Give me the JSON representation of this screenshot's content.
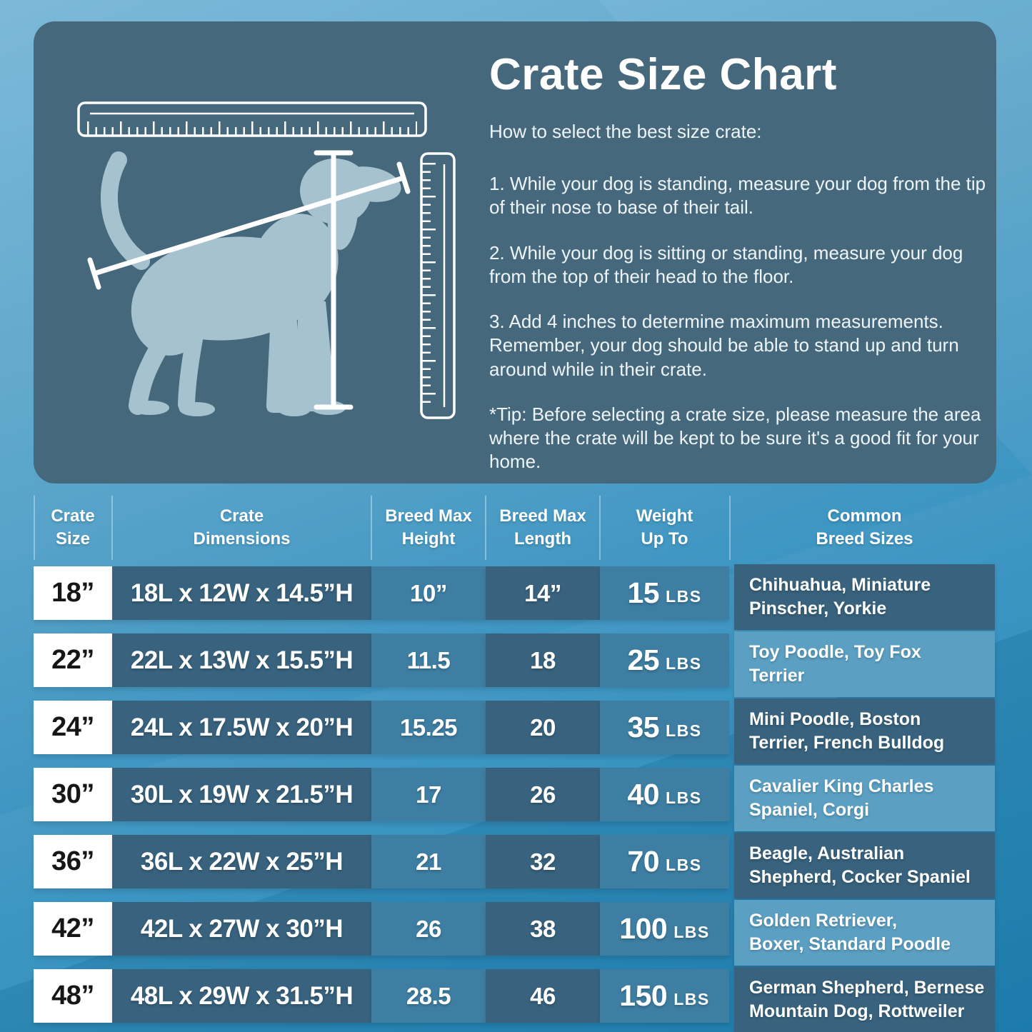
{
  "colors": {
    "bg_top": "#7db9d8",
    "bg_bottom": "#1e82b5",
    "panel": "#45687c",
    "dog": "#a7c2cf",
    "cell_dark": "#38627d",
    "cell_medium": "#3d7ea2",
    "cell_light": "#5b9fc2",
    "size_cell_bg": "#ffffff",
    "size_cell_text": "#161616",
    "text": "#ffffff"
  },
  "panel": {
    "title": "Crate Size Chart",
    "subtitle": "How to select the best size crate:",
    "steps": [
      "1. While your dog is standing, measure your dog from the tip of their nose to base of their tail.",
      "2. While your dog is sitting or standing, measure your dog from the top of their head to the floor.",
      "3. Add 4 inches to determine maximum measurements. Remember, your dog should be able to stand up and turn around while in their crate.",
      "*Tip: Before selecting a crate size, please measure the area where the crate will be kept to be sure it's a good fit for your home."
    ]
  },
  "illustration": {
    "icons": [
      "horizontal-ruler-icon",
      "vertical-ruler-icon",
      "dog-silhouette",
      "height-measure-line",
      "length-measure-line"
    ]
  },
  "table": {
    "headers": [
      {
        "id": "size",
        "line1": "Crate",
        "line2": "Size"
      },
      {
        "id": "dimensions",
        "line1": "Crate",
        "line2": "Dimensions"
      },
      {
        "id": "height",
        "line1": "Breed Max",
        "line2": "Height"
      },
      {
        "id": "length",
        "line1": "Breed Max",
        "line2": "Length"
      },
      {
        "id": "weight",
        "line1": "Weight",
        "line2": "Up To"
      },
      {
        "id": "breeds",
        "line1": "Common",
        "line2": "Breed Sizes"
      }
    ],
    "rows": [
      {
        "size": "18”",
        "dimensions": "18L x 12W x 14.5”H",
        "height": "10”",
        "length": "14”",
        "weight_value": "15",
        "weight_unit": "LBS",
        "breeds_line1": "Chihuahua, Miniature",
        "breeds_line2": "Pinscher, Yorkie",
        "breed_shade": "dark"
      },
      {
        "size": "22”",
        "dimensions": "22L x 13W x 15.5”H",
        "height": "11.5",
        "length": "18",
        "weight_value": "25",
        "weight_unit": "LBS",
        "breeds_line1": "Toy Poodle, Toy Fox",
        "breeds_line2": "Terrier",
        "breed_shade": "light"
      },
      {
        "size": "24”",
        "dimensions": "24L x 17.5W x 20”H",
        "height": "15.25",
        "length": "20",
        "weight_value": "35",
        "weight_unit": "LBS",
        "breeds_line1": "Mini Poodle, Boston",
        "breeds_line2": "Terrier, French Bulldog",
        "breed_shade": "dark"
      },
      {
        "size": "30”",
        "dimensions": "30L x 19W x 21.5”H",
        "height": "17",
        "length": "26",
        "weight_value": "40",
        "weight_unit": "LBS",
        "breeds_line1": "Cavalier King Charles",
        "breeds_line2": "Spaniel, Corgi",
        "breed_shade": "light"
      },
      {
        "size": "36”",
        "dimensions": "36L x 22W x 25”H",
        "height": "21",
        "length": "32",
        "weight_value": "70",
        "weight_unit": "LBS",
        "breeds_line1": "Beagle, Australian",
        "breeds_line2": "Shepherd, Cocker Spaniel",
        "breed_shade": "dark"
      },
      {
        "size": "42”",
        "dimensions": "42L x 27W x 30”H",
        "height": "26",
        "length": "38",
        "weight_value": "100",
        "weight_unit": "LBS",
        "breeds_line1": "Golden Retriever,",
        "breeds_line2": "Boxer, Standard Poodle",
        "breed_shade": "light"
      },
      {
        "size": "48”",
        "dimensions": "48L x 29W x 31.5”H",
        "height": "28.5",
        "length": "46",
        "weight_value": "150",
        "weight_unit": "LBS",
        "breeds_line1": "German Shepherd, Bernese",
        "breeds_line2": "Mountain Dog, Rottweiler",
        "breed_shade": "dark"
      }
    ]
  },
  "chart_data": {
    "type": "table",
    "title": "Crate Size Chart",
    "columns": [
      "Crate Size",
      "Crate Dimensions",
      "Breed Max Height",
      "Breed Max Length",
      "Weight Up To",
      "Common Breed Sizes"
    ],
    "rows": [
      [
        "18”",
        "18L x 12W x 14.5”H",
        "10”",
        "14”",
        "15 LBS",
        "Chihuahua, Miniature Pinscher, Yorkie"
      ],
      [
        "22”",
        "22L x 13W x 15.5”H",
        "11.5",
        "18",
        "25 LBS",
        "Toy Poodle, Toy Fox Terrier"
      ],
      [
        "24”",
        "24L x 17.5W x 20”H",
        "15.25",
        "20",
        "35 LBS",
        "Mini Poodle, Boston Terrier, French Bulldog"
      ],
      [
        "30”",
        "30L x 19W x 21.5”H",
        "17",
        "26",
        "40 LBS",
        "Cavalier King Charles Spaniel, Corgi"
      ],
      [
        "36”",
        "36L x 22W x 25”H",
        "21",
        "32",
        "70 LBS",
        "Beagle, Australian Shepherd, Cocker Spaniel"
      ],
      [
        "42”",
        "42L x 27W x 30”H",
        "26",
        "38",
        "100 LBS",
        "Golden Retriever, Boxer, Standard Poodle"
      ],
      [
        "48”",
        "48L x 29W x 31.5”H",
        "28.5",
        "46",
        "150 LBS",
        "German Shepherd, Bernese Mountain Dog, Rottweiler"
      ]
    ]
  }
}
